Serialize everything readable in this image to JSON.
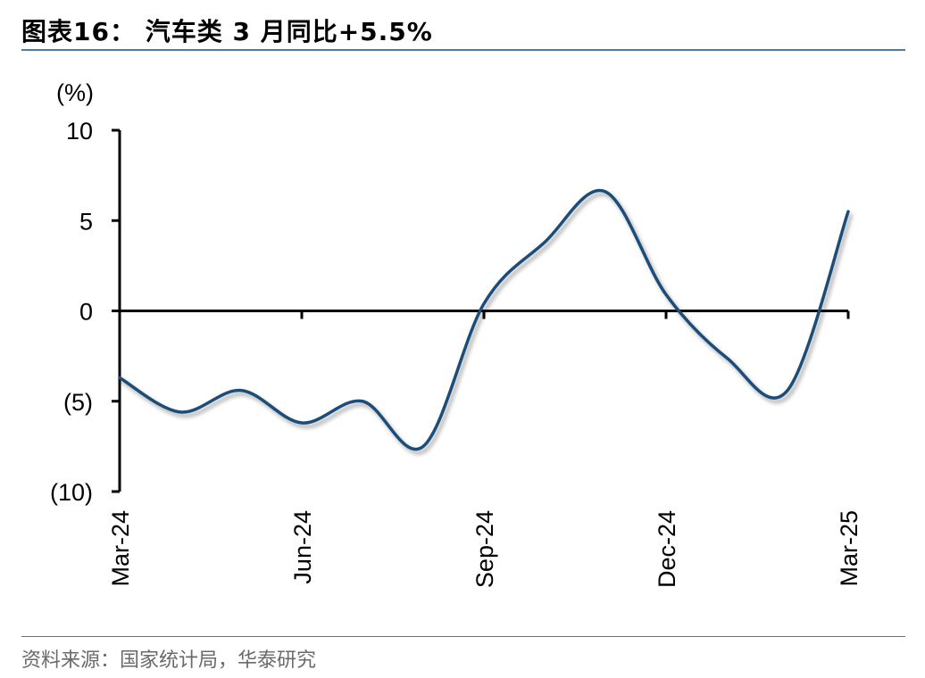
{
  "header": {
    "title": "图表16： 汽车类 3 月同比+5.5%"
  },
  "footer": {
    "source": "资料来源：国家统计局，华泰研究"
  },
  "chart_data": {
    "type": "line",
    "unit_label": "(%)",
    "ylim": [
      -10,
      10
    ],
    "yticks": [
      10,
      5,
      0,
      -5,
      -10
    ],
    "ytick_labels": [
      "10",
      "5",
      "0",
      "(5)",
      "(10)"
    ],
    "xtick_labels": [
      "Mar-24",
      "Jun-24",
      "Sep-24",
      "Dec-24",
      "Mar-25"
    ],
    "x": [
      "Mar-24",
      "Apr-24",
      "May-24",
      "Jun-24",
      "Jul-24",
      "Aug-24",
      "Sep-24",
      "Oct-24",
      "Nov-24",
      "Dec-24",
      "Jan-25",
      "Feb-25",
      "Mar-25"
    ],
    "series": [
      {
        "values": [
          -3.7,
          -5.6,
          -4.4,
          -6.2,
          -5.0,
          -7.5,
          0.4,
          3.8,
          6.6,
          0.9,
          -2.6,
          -4.4,
          5.5
        ],
        "color": "#1f4e79"
      }
    ],
    "grid": false,
    "legend": "none"
  }
}
